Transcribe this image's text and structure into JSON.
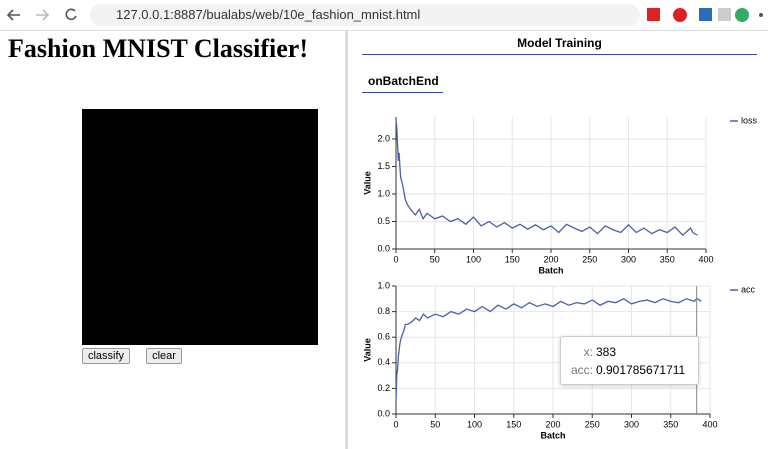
{
  "browser": {
    "url": "127.0.0.1:8887/bualabs/web/10e_fashion_mnist.html"
  },
  "page": {
    "title": "Fashion MNIST Classifier!",
    "buttons": [
      "classify",
      "clear"
    ]
  },
  "panel": {
    "title": "Model Training",
    "tab": "onBatchEnd"
  },
  "chart_data": [
    {
      "type": "line",
      "xlabel": "Batch",
      "ylabel": "Value",
      "x": [
        0,
        1,
        2,
        3,
        4,
        5,
        6,
        8,
        10,
        12,
        15,
        20,
        25,
        30,
        35,
        40,
        50,
        60,
        70,
        80,
        90,
        100,
        110,
        120,
        130,
        140,
        150,
        160,
        170,
        180,
        190,
        200,
        210,
        220,
        230,
        240,
        250,
        260,
        270,
        280,
        290,
        300,
        310,
        320,
        330,
        340,
        350,
        360,
        370,
        380,
        383,
        389
      ],
      "series": [
        {
          "name": "loss",
          "color": "#4c5fad",
          "values": [
            2.35,
            2.2,
            1.9,
            1.6,
            1.75,
            1.5,
            1.3,
            1.2,
            1.05,
            0.9,
            0.8,
            0.7,
            0.62,
            0.72,
            0.55,
            0.65,
            0.55,
            0.6,
            0.5,
            0.55,
            0.45,
            0.58,
            0.42,
            0.5,
            0.4,
            0.48,
            0.38,
            0.45,
            0.36,
            0.44,
            0.35,
            0.42,
            0.3,
            0.45,
            0.38,
            0.32,
            0.4,
            0.28,
            0.42,
            0.35,
            0.3,
            0.44,
            0.3,
            0.38,
            0.28,
            0.35,
            0.3,
            0.4,
            0.25,
            0.38,
            0.3,
            0.25
          ]
        }
      ],
      "xlim": [
        0,
        400
      ],
      "xticks": [
        0,
        50,
        100,
        150,
        200,
        250,
        300,
        350,
        400
      ],
      "ylim": [
        0,
        2.4
      ],
      "yticks": [
        {
          "value": 0,
          "label": "0.0"
        },
        0.5,
        {
          "value": 1,
          "label": "1.0"
        },
        1.5,
        {
          "value": 2,
          "label": "2.0"
        }
      ],
      "grid": true
    },
    {
      "type": "line",
      "xlabel": "Batch",
      "ylabel": "Value",
      "x": [
        0,
        1,
        2,
        3,
        4,
        5,
        6,
        8,
        10,
        12,
        15,
        20,
        25,
        30,
        35,
        40,
        50,
        60,
        70,
        80,
        90,
        100,
        110,
        120,
        130,
        140,
        150,
        160,
        170,
        180,
        190,
        200,
        210,
        220,
        230,
        240,
        250,
        260,
        270,
        280,
        290,
        300,
        310,
        320,
        330,
        340,
        350,
        360,
        370,
        380,
        383,
        389
      ],
      "series": [
        {
          "name": "acc",
          "color": "#4c5fad",
          "values": [
            0.1,
            0.3,
            0.35,
            0.45,
            0.5,
            0.55,
            0.58,
            0.62,
            0.65,
            0.7,
            0.7,
            0.72,
            0.75,
            0.73,
            0.78,
            0.75,
            0.78,
            0.76,
            0.8,
            0.78,
            0.82,
            0.8,
            0.84,
            0.8,
            0.85,
            0.82,
            0.86,
            0.83,
            0.87,
            0.84,
            0.86,
            0.84,
            0.88,
            0.85,
            0.87,
            0.86,
            0.89,
            0.85,
            0.88,
            0.87,
            0.9,
            0.86,
            0.88,
            0.89,
            0.87,
            0.9,
            0.88,
            0.87,
            0.9,
            0.88,
            0.901785671711,
            0.88
          ]
        }
      ],
      "xlim": [
        0,
        400
      ],
      "xticks": [
        0,
        50,
        100,
        150,
        200,
        250,
        300,
        350,
        400
      ],
      "ylim": [
        0,
        1
      ],
      "yticks": [
        {
          "value": 0,
          "label": "0.0"
        },
        {
          "value": 0.2,
          "label": "0.2"
        },
        {
          "value": 0.4,
          "label": "0.4"
        },
        {
          "value": 0.6,
          "label": "0.6"
        },
        {
          "value": 0.8,
          "label": "0.8"
        },
        {
          "value": 1,
          "label": "1.0"
        }
      ],
      "grid": true,
      "tooltip": {
        "x_label": "x:",
        "x": 383,
        "y_label": "acc:",
        "y": 0.901785671711
      }
    }
  ]
}
